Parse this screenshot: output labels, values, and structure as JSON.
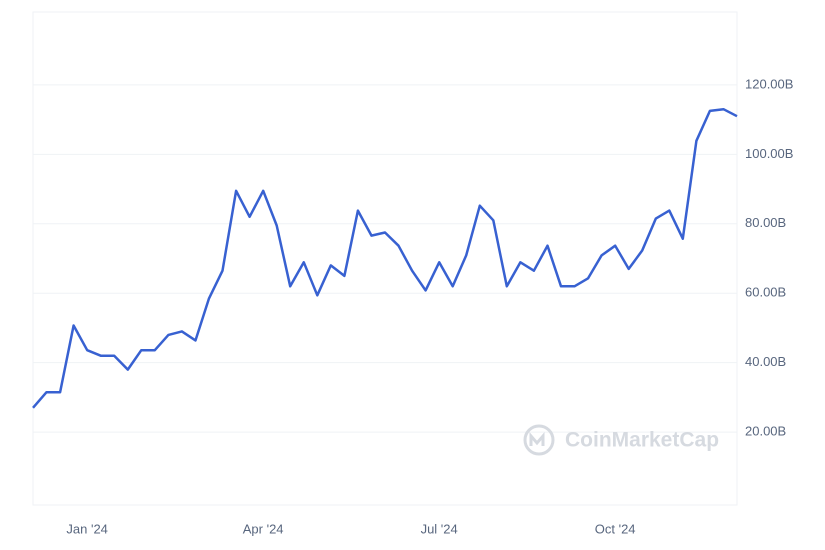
{
  "chart_data": {
    "type": "line",
    "categories": [
      null,
      null,
      null,
      null,
      "Jan '24",
      null,
      null,
      null,
      null,
      null,
      null,
      null,
      null,
      null,
      null,
      null,
      null,
      "Apr '24",
      null,
      null,
      null,
      null,
      null,
      null,
      null,
      null,
      null,
      null,
      null,
      null,
      "Jul '24",
      null,
      null,
      null,
      null,
      null,
      null,
      null,
      null,
      null,
      null,
      null,
      null,
      "Oct '24",
      null,
      null,
      null,
      null,
      null,
      null,
      null,
      null,
      null
    ],
    "series": [
      {
        "color": "#3861d1",
        "values": [
          27,
          31.5,
          31.5,
          50.7,
          43.6,
          42,
          42,
          38,
          43.6,
          43.6,
          48,
          49,
          46.4,
          58.5,
          66.5,
          89.5,
          82,
          89.5,
          79.5,
          62,
          68.9,
          59.4,
          68,
          65,
          83.8,
          76.6,
          77.5,
          73.7,
          66.5,
          60.8,
          68.9,
          62,
          70.9,
          85.2,
          81,
          62,
          68.9,
          66.5,
          73.7,
          62,
          62,
          64.3,
          70.9,
          73.7,
          67,
          72.3,
          81.5,
          83.8,
          75.7,
          103.9,
          112.5,
          113,
          111
        ]
      }
    ],
    "ylim": [
      -1,
      141
    ],
    "yticks": [
      {
        "value": 20,
        "label": "20.00B"
      },
      {
        "value": 40,
        "label": "40.00B"
      },
      {
        "value": 60,
        "label": "60.00B"
      },
      {
        "value": 80,
        "label": "80.00B"
      },
      {
        "value": 100,
        "label": "100.00B"
      },
      {
        "value": 120,
        "label": "120.00B"
      }
    ],
    "grid": true,
    "watermark": "CoinMarketCap"
  }
}
